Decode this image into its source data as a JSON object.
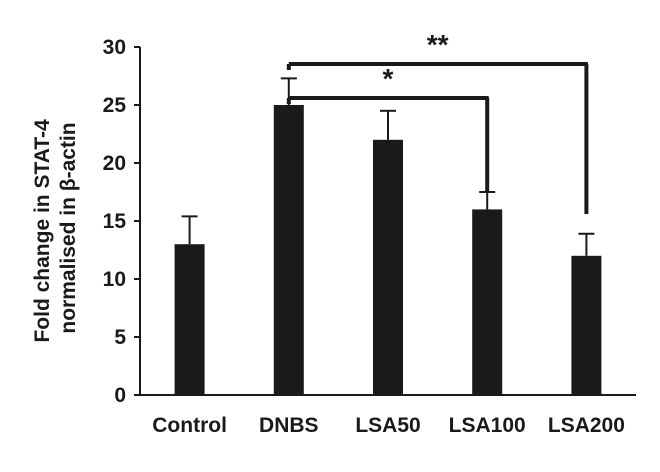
{
  "chart_data": {
    "type": "bar",
    "title": "",
    "xlabel": "",
    "ylabel_lines": [
      "Fold change in STAT-4",
      "normalised in β-actin"
    ],
    "categories": [
      "Control",
      "DNBS",
      "LSA50",
      "LSA100",
      "LSA200"
    ],
    "values": [
      13,
      25,
      22,
      16,
      12
    ],
    "errors": [
      2.4,
      2.3,
      2.5,
      1.5,
      1.9
    ],
    "ylim": [
      0,
      30
    ],
    "yticks": [
      0,
      5,
      10,
      15,
      20,
      25,
      30
    ],
    "bar_color": "#1a1a1a",
    "grid": false,
    "significance": [
      {
        "from": "DNBS",
        "to": "LSA100",
        "label": "*"
      },
      {
        "from": "DNBS",
        "to": "LSA200",
        "label": "**"
      }
    ]
  }
}
